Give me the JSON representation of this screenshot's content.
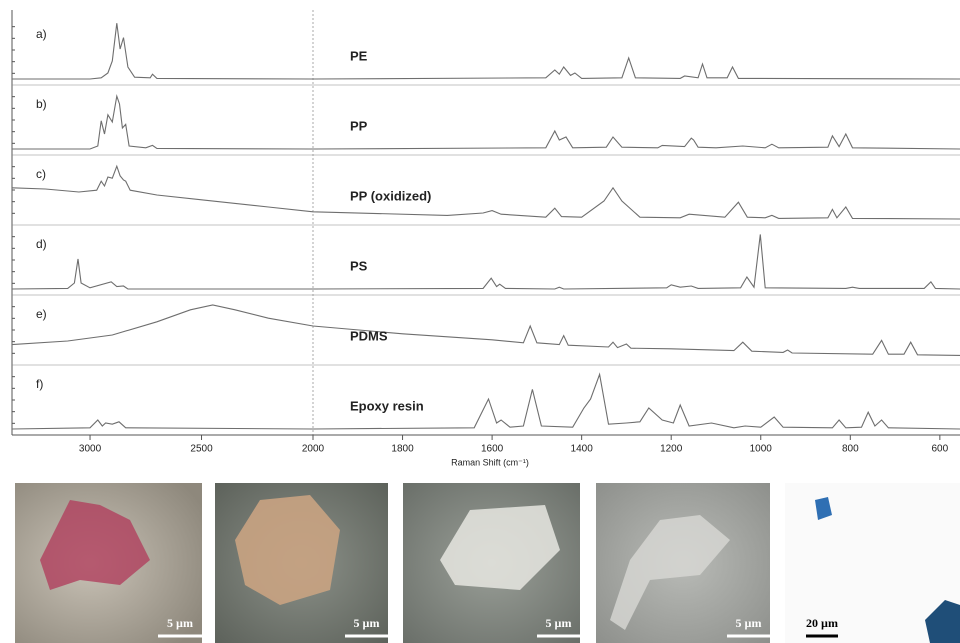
{
  "chart_data": {
    "type": "line",
    "x_label": "Raman Shift (cm⁻¹)",
    "xlim": [
      3350,
      555
    ],
    "xbreak": 2000,
    "xticks": [
      3000,
      2500,
      2000,
      1800,
      1600,
      1400,
      1200,
      1000,
      800,
      600
    ],
    "ylim": [
      -10,
      100
    ],
    "color": "#6e6e6e",
    "series": [
      {
        "label": "a)",
        "name": "PE",
        "x": [
          3350,
          3000,
          2950,
          2920,
          2900,
          2880,
          2865,
          2850,
          2830,
          2800,
          2730,
          2720,
          2700,
          2000,
          1480,
          1460,
          1450,
          1440,
          1425,
          1415,
          1400,
          1310,
          1295,
          1280,
          1180,
          1170,
          1140,
          1130,
          1120,
          1075,
          1063,
          1050,
          555
        ],
        "values": [
          0,
          0,
          2,
          10,
          30,
          93,
          50,
          69,
          20,
          3,
          2,
          8,
          1,
          0,
          2,
          15,
          8,
          20,
          6,
          10,
          1,
          2,
          35,
          2,
          1,
          5,
          2,
          25,
          2,
          2,
          20,
          1,
          0
        ]
      },
      {
        "label": "b)",
        "name": "PP",
        "x": [
          3350,
          3000,
          2965,
          2950,
          2935,
          2920,
          2900,
          2880,
          2868,
          2855,
          2840,
          2825,
          2750,
          2720,
          2700,
          2000,
          1480,
          1460,
          1450,
          1435,
          1420,
          1345,
          1330,
          1310,
          1230,
          1220,
          1170,
          1155,
          1150,
          1140,
          1100,
          1040,
          990,
          975,
          960,
          850,
          840,
          825,
          810,
          795,
          555
        ],
        "values": [
          0,
          0,
          5,
          47,
          25,
          57,
          45,
          88,
          75,
          35,
          41,
          5,
          2,
          6,
          1,
          0,
          2,
          30,
          15,
          20,
          2,
          3,
          20,
          3,
          2,
          6,
          4,
          18,
          15,
          3,
          2,
          5,
          2,
          8,
          2,
          3,
          22,
          4,
          25,
          2,
          0
        ]
      },
      {
        "label": "c)",
        "name": "PP (oxidized)",
        "x": [
          3350,
          3200,
          3050,
          2970,
          2950,
          2935,
          2920,
          2900,
          2880,
          2865,
          2850,
          2840,
          2820,
          2700,
          2500,
          2200,
          2000,
          1700,
          1620,
          1600,
          1580,
          1480,
          1460,
          1445,
          1400,
          1350,
          1330,
          1310,
          1270,
          1180,
          1160,
          1080,
          1050,
          1030,
          990,
          975,
          960,
          850,
          840,
          830,
          810,
          795,
          555
        ],
        "values": [
          52,
          50,
          45,
          48,
          63,
          55,
          70,
          68,
          88,
          72,
          65,
          63,
          48,
          40,
          32,
          20,
          12,
          6,
          10,
          14,
          8,
          3,
          18,
          4,
          3,
          30,
          52,
          30,
          3,
          2,
          8,
          3,
          28,
          3,
          2,
          6,
          1,
          2,
          16,
          2,
          20,
          1,
          0
        ]
      },
      {
        "label": "d)",
        "name": "PS",
        "x": [
          3350,
          3100,
          3070,
          3054,
          3040,
          3000,
          2905,
          2880,
          2850,
          2830,
          2000,
          1620,
          1602,
          1590,
          1583,
          1570,
          1460,
          1450,
          1440,
          1210,
          1200,
          1180,
          1155,
          1140,
          1045,
          1031,
          1015,
          1001,
          990,
          810,
          795,
          780,
          635,
          620,
          610,
          555
        ],
        "values": [
          0,
          1,
          10,
          50,
          10,
          2,
          12,
          4,
          5,
          0,
          0,
          1,
          18,
          4,
          8,
          1,
          0,
          3,
          0,
          2,
          7,
          3,
          5,
          1,
          2,
          20,
          3,
          91,
          2,
          1,
          3,
          1,
          1,
          12,
          1,
          0
        ]
      },
      {
        "label": "e)",
        "name": "PDMS",
        "x": [
          3350,
          3100,
          2900,
          2700,
          2550,
          2450,
          2350,
          2200,
          2000,
          1800,
          1600,
          1530,
          1515,
          1500,
          1450,
          1440,
          1430,
          1340,
          1330,
          1320,
          1300,
          1290,
          1200,
          1060,
          1040,
          1020,
          950,
          940,
          930,
          750,
          730,
          715,
          680,
          665,
          650,
          555
        ],
        "values": [
          24,
          30,
          40,
          62,
          82,
          90,
          82,
          68,
          55,
          42,
          32,
          27,
          55,
          27,
          24,
          39,
          23,
          20,
          28,
          19,
          25,
          18,
          17,
          14,
          28,
          13,
          11,
          15,
          10,
          8,
          31,
          8,
          8,
          28,
          7,
          6
        ]
      },
      {
        "label": "f)",
        "name": "Epoxy resin",
        "x": [
          3350,
          3000,
          2965,
          2945,
          2930,
          2900,
          2870,
          2840,
          2000,
          1640,
          1608,
          1590,
          1580,
          1560,
          1530,
          1510,
          1490,
          1420,
          1395,
          1380,
          1360,
          1340,
          1300,
          1270,
          1250,
          1220,
          1195,
          1180,
          1160,
          1110,
          1060,
          1035,
          1000,
          970,
          950,
          840,
          825,
          810,
          775,
          760,
          745,
          730,
          715,
          555
        ],
        "values": [
          0,
          2,
          15,
          5,
          10,
          8,
          12,
          2,
          0,
          2,
          50,
          10,
          15,
          3,
          5,
          66,
          5,
          3,
          35,
          50,
          91,
          8,
          10,
          12,
          35,
          15,
          10,
          40,
          5,
          10,
          2,
          5,
          3,
          20,
          3,
          2,
          15,
          2,
          3,
          28,
          5,
          15,
          2,
          0
        ]
      }
    ]
  },
  "images": [
    {
      "scale_bar": "5 µm"
    },
    {
      "scale_bar": "5 µm"
    },
    {
      "scale_bar": "5 µm"
    },
    {
      "scale_bar": "5 µm"
    },
    {
      "scale_bar": "20 µm"
    }
  ]
}
